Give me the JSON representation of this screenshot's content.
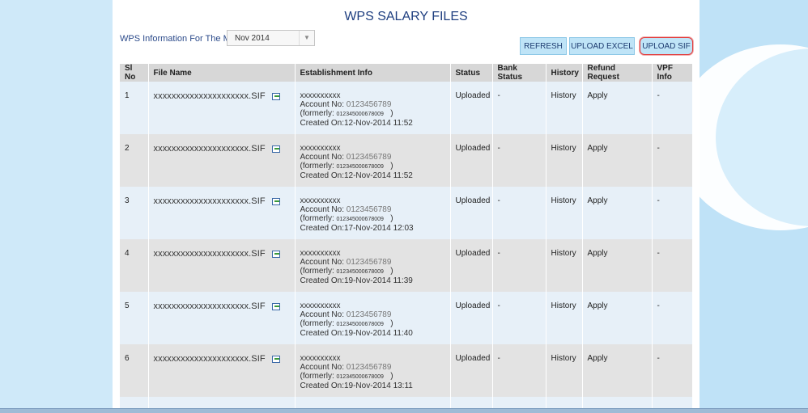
{
  "page": {
    "title": "WPS SALARY FILES"
  },
  "filter": {
    "label": "WPS Information For The Month",
    "selected_month": "Nov 2014",
    "arrow": "▼"
  },
  "toolbar": {
    "refresh_label": "REFRESH",
    "upload_excel_label": "UPLOAD EXCEL",
    "upload_sif_label": "UPLOAD SIF"
  },
  "table": {
    "headers": [
      "Sl No",
      "File Name",
      "Establishment Info",
      "Status",
      "Bank Status",
      "History",
      "Refund Request",
      "VPF Info"
    ],
    "rows": [
      {
        "sl": "1",
        "file": "xxxxxxxxxxxxxxxxxxxxx.SIF",
        "est_name": "xxxxxxxxxx",
        "account_label": "Account No:",
        "account_no": "0123456789",
        "formerly_label": "(formerly:",
        "formerly_no": "012345000678009",
        "formerly_close": ")",
        "created": "Created On:12-Nov-2014 11:52",
        "status": "Uploaded",
        "bank_status": "-",
        "history": "History",
        "refund": "Apply",
        "vpf": "-"
      },
      {
        "sl": "2",
        "file": "xxxxxxxxxxxxxxxxxxxxx.SIF",
        "est_name": "xxxxxxxxxx",
        "account_label": "Account No:",
        "account_no": "0123456789",
        "formerly_label": "(formerly:",
        "formerly_no": "012345000678009",
        "formerly_close": ")",
        "created": "Created On:12-Nov-2014 11:52",
        "status": "Uploaded",
        "bank_status": "-",
        "history": "History",
        "refund": "Apply",
        "vpf": "-"
      },
      {
        "sl": "3",
        "file": "xxxxxxxxxxxxxxxxxxxxx.SIF",
        "est_name": "xxxxxxxxxx",
        "account_label": "Account No:",
        "account_no": "0123456789",
        "formerly_label": "(formerly:",
        "formerly_no": "012345000678009",
        "formerly_close": ")",
        "created": "Created On:17-Nov-2014 12:03",
        "status": "Uploaded",
        "bank_status": "-",
        "history": "History",
        "refund": "Apply",
        "vpf": "-"
      },
      {
        "sl": "4",
        "file": "xxxxxxxxxxxxxxxxxxxxx.SIF",
        "est_name": "xxxxxxxxxx",
        "account_label": "Account No:",
        "account_no": "0123456789",
        "formerly_label": "(formerly:",
        "formerly_no": "012345000678009",
        "formerly_close": ")",
        "created": "Created On:19-Nov-2014 11:39",
        "status": "Uploaded",
        "bank_status": "-",
        "history": "History",
        "refund": "Apply",
        "vpf": "-"
      },
      {
        "sl": "5",
        "file": "xxxxxxxxxxxxxxxxxxxxx.SIF",
        "est_name": "xxxxxxxxxx",
        "account_label": "Account No:",
        "account_no": "0123456789",
        "formerly_label": "(formerly:",
        "formerly_no": "012345000678009",
        "formerly_close": ")",
        "created": "Created On:19-Nov-2014 11:40",
        "status": "Uploaded",
        "bank_status": "-",
        "history": "History",
        "refund": "Apply",
        "vpf": "-"
      },
      {
        "sl": "6",
        "file": "xxxxxxxxxxxxxxxxxxxxx.SIF",
        "est_name": "xxxxxxxxxx",
        "account_label": "Account No:",
        "account_no": "0123456789",
        "formerly_label": "(formerly:",
        "formerly_no": "012345000678009",
        "formerly_close": ")",
        "created": "Created On:19-Nov-2014 13:11",
        "status": "Uploaded",
        "bank_status": "-",
        "history": "History",
        "refund": "Apply",
        "vpf": "-"
      }
    ]
  },
  "colors": {
    "accent": "#1f3f80",
    "button_bg": "#bfe4f7",
    "highlight_border": "#e23a3a"
  }
}
